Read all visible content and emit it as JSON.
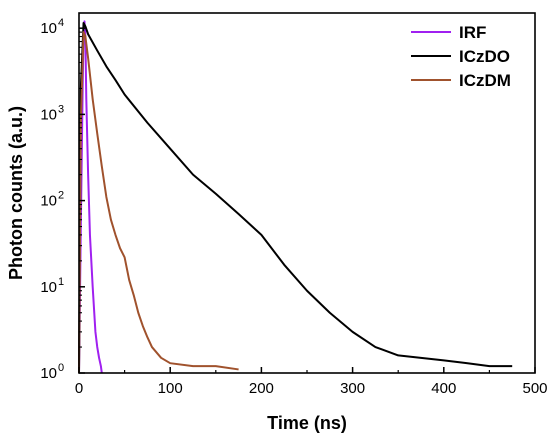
{
  "chart_data": {
    "type": "line",
    "title": "",
    "xlabel": "Time (ns)",
    "ylabel": "Photon counts (a.u.)",
    "xlim": [
      0,
      500
    ],
    "ylim": [
      1,
      15000
    ],
    "yscale": "log",
    "grid": false,
    "legend_position": "top-right",
    "x_ticks": [
      0,
      100,
      200,
      300,
      400,
      500
    ],
    "x_tick_labels": [
      "0",
      "100",
      "200",
      "300",
      "400",
      "500"
    ],
    "y_ticks": [
      1,
      10,
      100,
      1000,
      10000
    ],
    "y_tick_labels": [
      {
        "base": "10",
        "exp": "0"
      },
      {
        "base": "10",
        "exp": "1"
      },
      {
        "base": "10",
        "exp": "2"
      },
      {
        "base": "10",
        "exp": "3"
      },
      {
        "base": "10",
        "exp": "4"
      }
    ],
    "series": [
      {
        "name": "IRF",
        "color": "#a020f0",
        "x": [
          0,
          2,
          4,
          5,
          6,
          7,
          8,
          10,
          12,
          15,
          18,
          20,
          22,
          24,
          25
        ],
        "y": [
          1,
          50,
          2000,
          9000,
          12000,
          8000,
          1500,
          200,
          40,
          10,
          3,
          2,
          1.5,
          1.2,
          1
        ]
      },
      {
        "name": "ICzDO",
        "color": "#000000",
        "x": [
          0,
          2,
          5,
          7,
          10,
          20,
          30,
          40,
          50,
          75,
          100,
          125,
          150,
          175,
          200,
          225,
          250,
          275,
          300,
          325,
          350,
          375,
          400,
          425,
          450,
          475
        ],
        "y": [
          1,
          2000,
          11500,
          10500,
          8500,
          5500,
          3600,
          2500,
          1700,
          800,
          400,
          200,
          120,
          70,
          40,
          18,
          9,
          5,
          3,
          2,
          1.6,
          1.5,
          1.4,
          1.3,
          1.2,
          1.2
        ]
      },
      {
        "name": "ICzDM",
        "color": "#a0522d",
        "x": [
          0,
          2,
          5,
          7,
          10,
          15,
          20,
          25,
          30,
          35,
          40,
          45,
          50,
          55,
          60,
          65,
          70,
          75,
          80,
          90,
          100,
          125,
          150,
          175
        ],
        "y": [
          1,
          800,
          9000,
          8000,
          4500,
          1500,
          600,
          250,
          110,
          60,
          40,
          28,
          22,
          12,
          8,
          5,
          3.5,
          2.6,
          2,
          1.5,
          1.3,
          1.2,
          1.2,
          1.1
        ]
      }
    ]
  }
}
